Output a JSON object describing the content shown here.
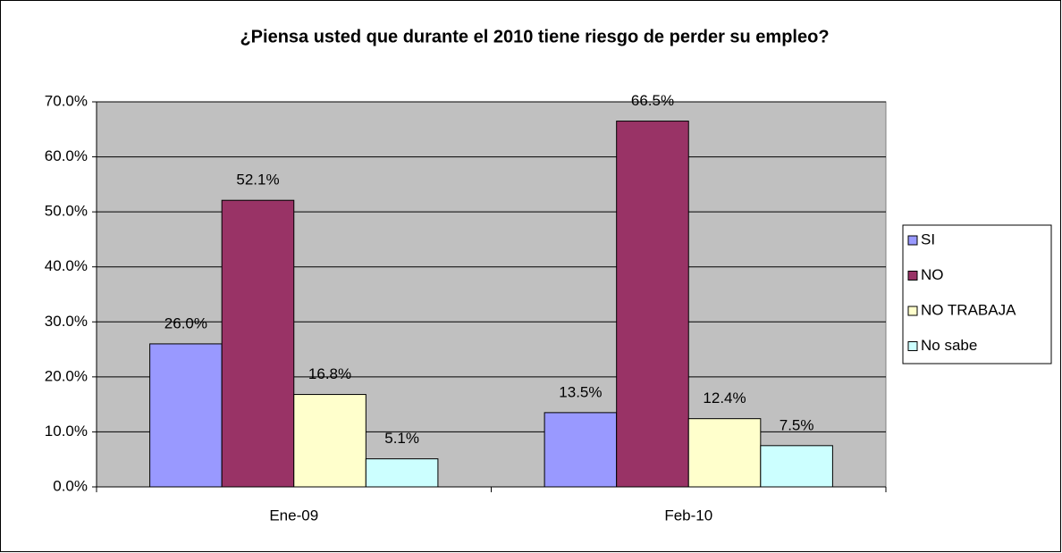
{
  "chart_data": {
    "type": "bar",
    "title": "¿Piensa usted que durante el 2010 tiene riesgo de perder su empleo?",
    "categories": [
      "Ene-09",
      "Feb-10"
    ],
    "series": [
      {
        "name": "SI",
        "color": "#9999ff",
        "values": [
          26.0,
          13.5
        ],
        "value_labels": [
          "26.0%",
          "13.5%"
        ]
      },
      {
        "name": "NO",
        "color": "#993366",
        "values": [
          52.1,
          66.5
        ],
        "value_labels": [
          "52.1%",
          "66.5%"
        ]
      },
      {
        "name": "NO TRABAJA",
        "color": "#ffffcc",
        "values": [
          16.8,
          12.4
        ],
        "value_labels": [
          "16.8%",
          "12.4%"
        ]
      },
      {
        "name": "No sabe",
        "color": "#ccffff",
        "values": [
          5.1,
          7.5
        ],
        "value_labels": [
          "5.1%",
          "7.5%"
        ]
      }
    ],
    "ylim": [
      0,
      70
    ],
    "yticks": [
      {
        "value": 0,
        "label": "0.0%"
      },
      {
        "value": 10,
        "label": "10.0%"
      },
      {
        "value": 20,
        "label": "20.0%"
      },
      {
        "value": 30,
        "label": "30.0%"
      },
      {
        "value": 40,
        "label": "40.0%"
      },
      {
        "value": 50,
        "label": "50.0%"
      },
      {
        "value": 60,
        "label": "60.0%"
      },
      {
        "value": 70,
        "label": "70.0%"
      }
    ],
    "grid": true,
    "legend": "right"
  }
}
